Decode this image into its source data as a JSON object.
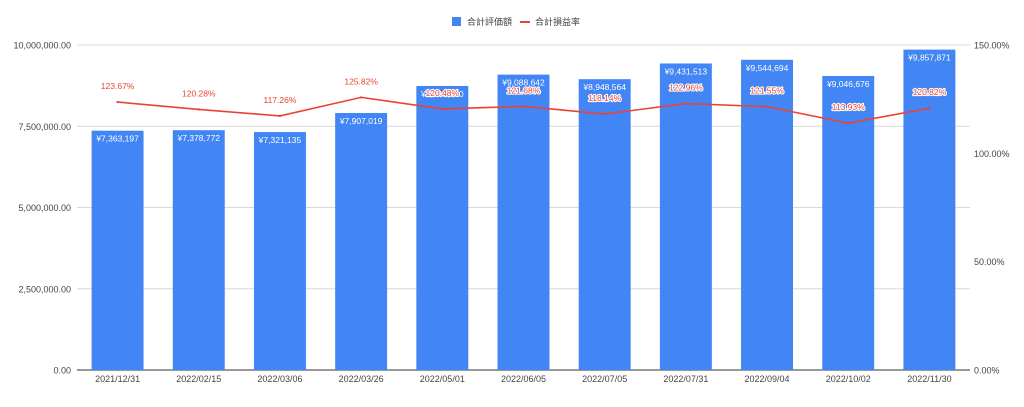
{
  "chart_data": {
    "type": "bar+line",
    "categories": [
      "2021/12/31",
      "2022/02/15",
      "2022/03/06",
      "2022/03/26",
      "2022/05/01",
      "2022/06/05",
      "2022/07/05",
      "2022/07/31",
      "2022/09/04",
      "2022/10/02",
      "2022/11/30"
    ],
    "series": [
      {
        "name": "合計評価額",
        "type": "bar",
        "color": "#4285f4",
        "axis": "left",
        "values": [
          7363197,
          7378772,
          7321135,
          7907019,
          8740000,
          9088642,
          8948564,
          9431513,
          9544694,
          9046676,
          9857871
        ],
        "labels": [
          "¥7,363,197",
          "¥7,378,772",
          "¥7,321,135",
          "¥7,907,019",
          "¥8,740,000",
          "¥9,088,642",
          "¥8,948,564",
          "¥9,431,513",
          "¥9,544,694",
          "¥9,046,676",
          "¥9,857,871"
        ]
      },
      {
        "name": "合計損益率",
        "type": "line",
        "color": "#ea4335",
        "axis": "right",
        "values": [
          123.67,
          120.28,
          117.26,
          125.82,
          120.48,
          121.68,
          118.14,
          122.96,
          121.55,
          113.93,
          120.82
        ],
        "labels": [
          "123.67%",
          "120.28%",
          "117.26%",
          "125.82%",
          "120.48%",
          "121.68%",
          "118.14%",
          "122.96%",
          "121.55%",
          "113.93%",
          "120.82%"
        ]
      }
    ],
    "left_axis": {
      "ylim": [
        0,
        10000000
      ],
      "ticks": [
        0,
        2500000,
        5000000,
        7500000,
        10000000
      ],
      "tick_labels": [
        "0.00",
        "2,500,000.00",
        "5,000,000.00",
        "7,500,000.00",
        "10,000,000.00"
      ]
    },
    "right_axis": {
      "ylim": [
        0,
        150
      ],
      "ticks": [
        0,
        50,
        100,
        150
      ],
      "tick_labels": [
        "0.00%",
        "50.00%",
        "100.00%",
        "150.00%"
      ]
    },
    "grid": true,
    "legend_position": "top-center",
    "title": "",
    "xlabel": "",
    "ylabel": ""
  }
}
